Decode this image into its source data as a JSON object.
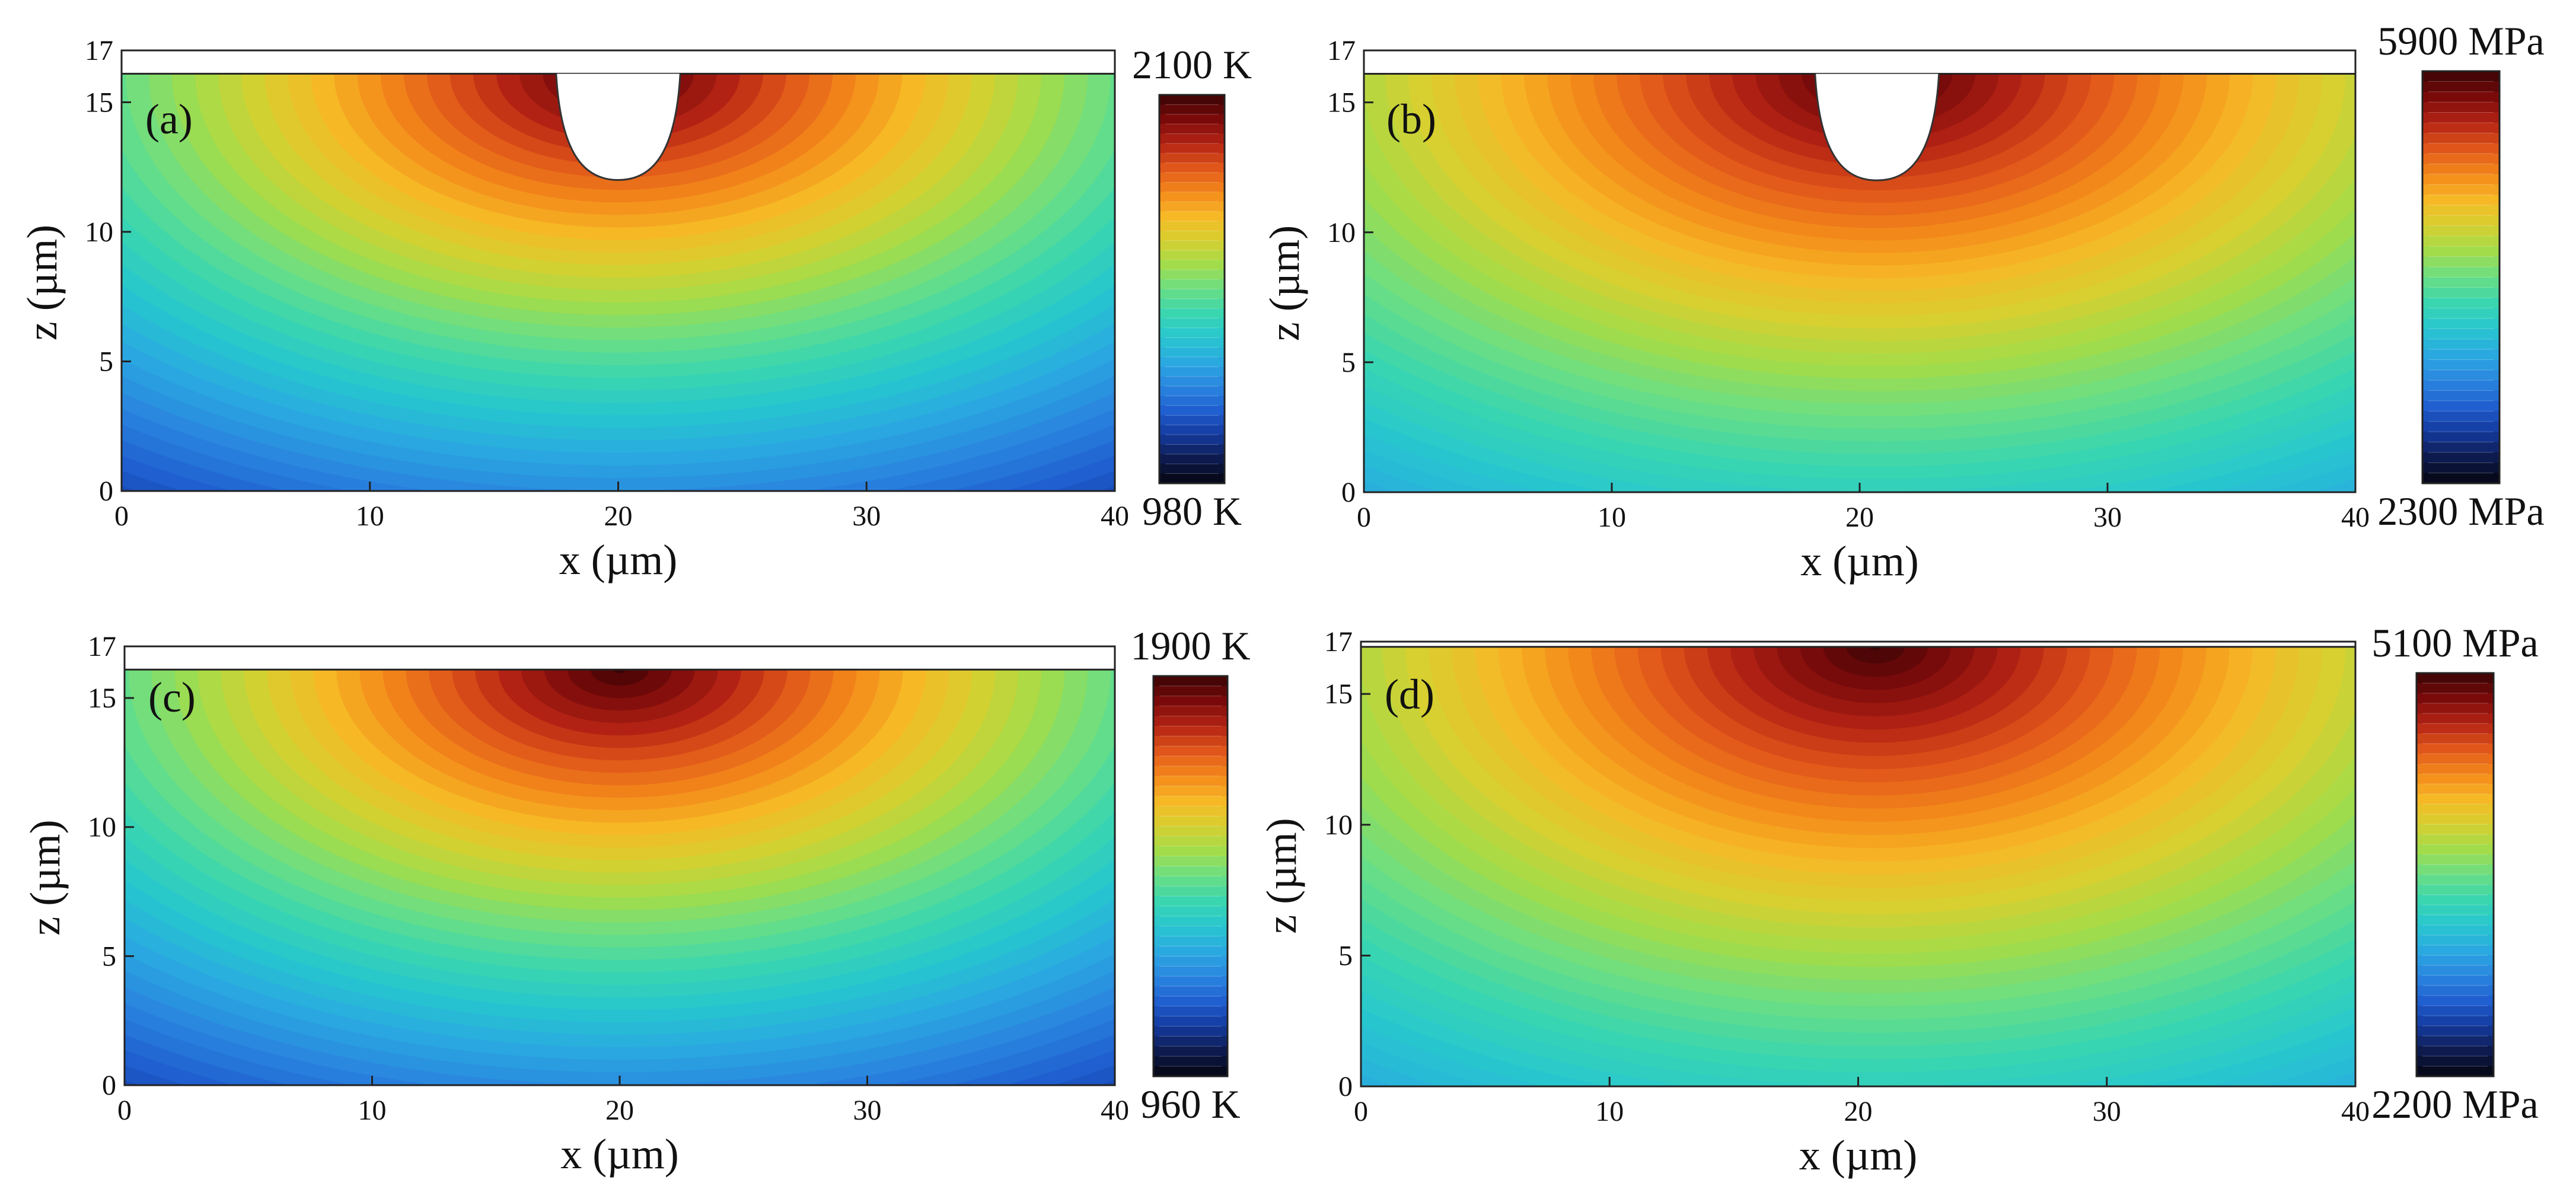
{
  "figure": {
    "description_free": true
  },
  "colormap": [
    "#050510",
    "#0d1a4e",
    "#143a9e",
    "#1f5fd0",
    "#2a86df",
    "#2aa9e0",
    "#27c6cf",
    "#3ad6b0",
    "#6ade84",
    "#a2dc4a",
    "#d7d030",
    "#f6b825",
    "#f3881a",
    "#e0561a",
    "#b42314",
    "#7a0a0a",
    "#3a0405"
  ],
  "chart_data": [
    {
      "id": "a",
      "type": "heatmap",
      "panel_label": "(a)",
      "quantity": "temperature",
      "xlabel": "x (µm)",
      "ylabel": "z (µm)",
      "xlim": [
        0,
        40
      ],
      "ylim": [
        0,
        17
      ],
      "xticks": [
        0,
        10,
        20,
        30,
        40
      ],
      "yticks": [
        0,
        5,
        10,
        15,
        17
      ],
      "colorbar": {
        "min": 980,
        "max": 2100,
        "unit": "K",
        "min_label": "980 K",
        "max_label": "2100 K"
      },
      "surface_z": 16.1,
      "melt_pool": {
        "center_x": 20,
        "half_width_top": 2.5,
        "bottom_z": 12
      },
      "field": {
        "center_x": 20,
        "value_bottom_center_frac": 0.26,
        "value_top_far_frac": 0.5,
        "value_corner_frac": 0.1
      }
    },
    {
      "id": "b",
      "type": "heatmap",
      "panel_label": "(b)",
      "quantity": "stress",
      "xlabel": "x (µm)",
      "ylabel": "z (µm)",
      "xlim": [
        0,
        40
      ],
      "ylim": [
        0,
        17
      ],
      "xticks": [
        0,
        10,
        20,
        30,
        40
      ],
      "yticks": [
        0,
        5,
        10,
        15,
        17
      ],
      "colorbar": {
        "min": 2300,
        "max": 5900,
        "unit": "MPa",
        "min_label": "2300 MPa",
        "max_label": "5900 MPa"
      },
      "surface_z": 16.1,
      "melt_pool": {
        "center_x": 20.7,
        "half_width_top": 2.5,
        "bottom_z": 12
      },
      "field": {
        "center_x": 20.7,
        "value_bottom_center_frac": 0.43,
        "value_top_far_frac": 0.64,
        "value_corner_frac": 0.28
      }
    },
    {
      "id": "c",
      "type": "heatmap",
      "panel_label": "(c)",
      "quantity": "temperature",
      "xlabel": "x (µm)",
      "ylabel": "z (µm)",
      "xlim": [
        0,
        40
      ],
      "ylim": [
        0,
        17
      ],
      "xticks": [
        0,
        10,
        20,
        30,
        40
      ],
      "yticks": [
        0,
        5,
        10,
        15,
        17
      ],
      "colorbar": {
        "min": 960,
        "max": 1900,
        "unit": "K",
        "min_label": "960 K",
        "max_label": "1900 K"
      },
      "surface_z": 16.1,
      "melt_pool": null,
      "field": {
        "center_x": 20,
        "value_bottom_center_frac": 0.26,
        "value_top_far_frac": 0.5,
        "value_corner_frac": 0.1
      }
    },
    {
      "id": "d",
      "type": "heatmap",
      "panel_label": "(d)",
      "quantity": "stress",
      "xlabel": "x (µm)",
      "ylabel": "z (µm)",
      "xlim": [
        0,
        40
      ],
      "ylim": [
        0,
        17
      ],
      "xticks": [
        0,
        10,
        20,
        30,
        40
      ],
      "yticks": [
        0,
        5,
        10,
        15,
        17
      ],
      "colorbar": {
        "min": 2200,
        "max": 5100,
        "unit": "MPa",
        "min_label": "2200 MPa",
        "max_label": "5100 MPa"
      },
      "surface_z": 16.8,
      "melt_pool": null,
      "field": {
        "center_x": 20.7,
        "value_bottom_center_frac": 0.43,
        "value_top_far_frac": 0.64,
        "value_corner_frac": 0.28
      }
    }
  ]
}
